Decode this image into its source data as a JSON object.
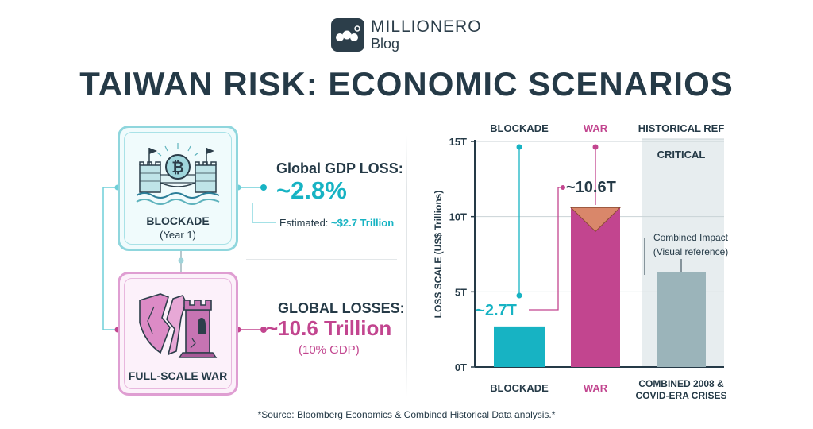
{
  "brand": {
    "name": "MILLIONERO",
    "sub": "Blog",
    "logo_icon": "millionero-logo-icon"
  },
  "title": "TAIWAN RISK: ECONOMIC SCENARIOS",
  "scenarios": {
    "blockade": {
      "label": "BLOCKADE",
      "sub": "(Year 1)",
      "stat_head": "Global GDP LOSS:",
      "stat_value": "~2.8%",
      "note_prefix": "Estimated:",
      "note_value": "~$2.7 Trillion",
      "icon": "bridge-bitcoin-icon"
    },
    "war": {
      "label": "FULL-SCALE WAR",
      "sub": "",
      "stat_head": "GLOBAL LOSSES:",
      "stat_value": "~10.6 Trillion",
      "note": "(10% GDP)",
      "icon": "broken-shield-tower-icon"
    }
  },
  "colors": {
    "teal": "#17b3c3",
    "magenta": "#c2458f",
    "gray": "#9bb4ba",
    "dark": "#253a47"
  },
  "chart_data": {
    "type": "bar",
    "categories": [
      "BLOCKADE",
      "WAR",
      "COMBINED 2008 & COVID-ERA CRISES"
    ],
    "top_labels": [
      "BLOCKADE",
      "WAR",
      "HISTORICAL REF"
    ],
    "values": [
      2.7,
      10.6,
      6.3
    ],
    "value_labels": [
      "~2.7T",
      "~10.6T",
      ""
    ],
    "ylabel": "LOSS SCALE (US$ Trillions)",
    "yticks": [
      "0T",
      "5T",
      "10T",
      "15T"
    ],
    "ytick_values": [
      0,
      5,
      10,
      15
    ],
    "ylim": [
      0,
      15
    ],
    "grid": true,
    "annotations": {
      "critical": "CRITICAL",
      "combined_1": "Combined Impact",
      "combined_2": "(Visual reference)"
    }
  },
  "source": "*Source: Bloomberg Economics & Combined Historical Data analysis.*"
}
